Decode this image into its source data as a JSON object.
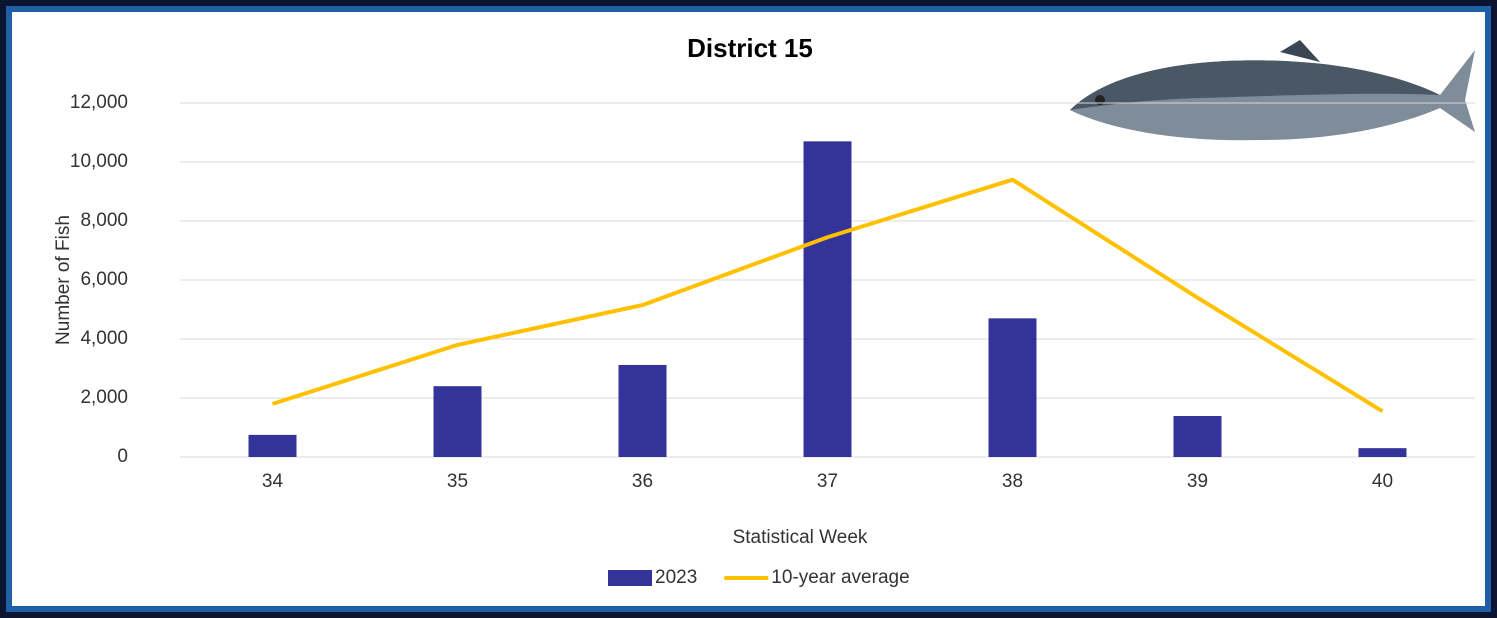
{
  "chart_data": {
    "type": "bar",
    "title": "District 15",
    "x_label": "Statistical Week",
    "y_label": "Number of Fish",
    "categories": [
      "34",
      "35",
      "36",
      "37",
      "38",
      "39",
      "40"
    ],
    "series": [
      {
        "name": "2023",
        "type": "bar",
        "color": "#333399",
        "values": [
          750,
          2400,
          3120,
          10700,
          4700,
          1390,
          300
        ]
      },
      {
        "name": "10-year average",
        "type": "line",
        "color": "#ffc000",
        "values": [
          1800,
          3800,
          5150,
          7450,
          9400,
          5400,
          1550
        ]
      }
    ],
    "ylim": [
      0,
      12000
    ],
    "yticks": [
      0,
      {
        "value": 2000,
        "label": "2,000"
      },
      {
        "value": 4000,
        "label": "4,000"
      },
      {
        "value": 6000,
        "label": "6,000"
      },
      {
        "value": 8000,
        "label": "8,000"
      },
      {
        "value": 10000,
        "label": "10,000"
      },
      {
        "value": 12000,
        "label": "12,000"
      }
    ],
    "grid": true,
    "legend": "bottom"
  }
}
